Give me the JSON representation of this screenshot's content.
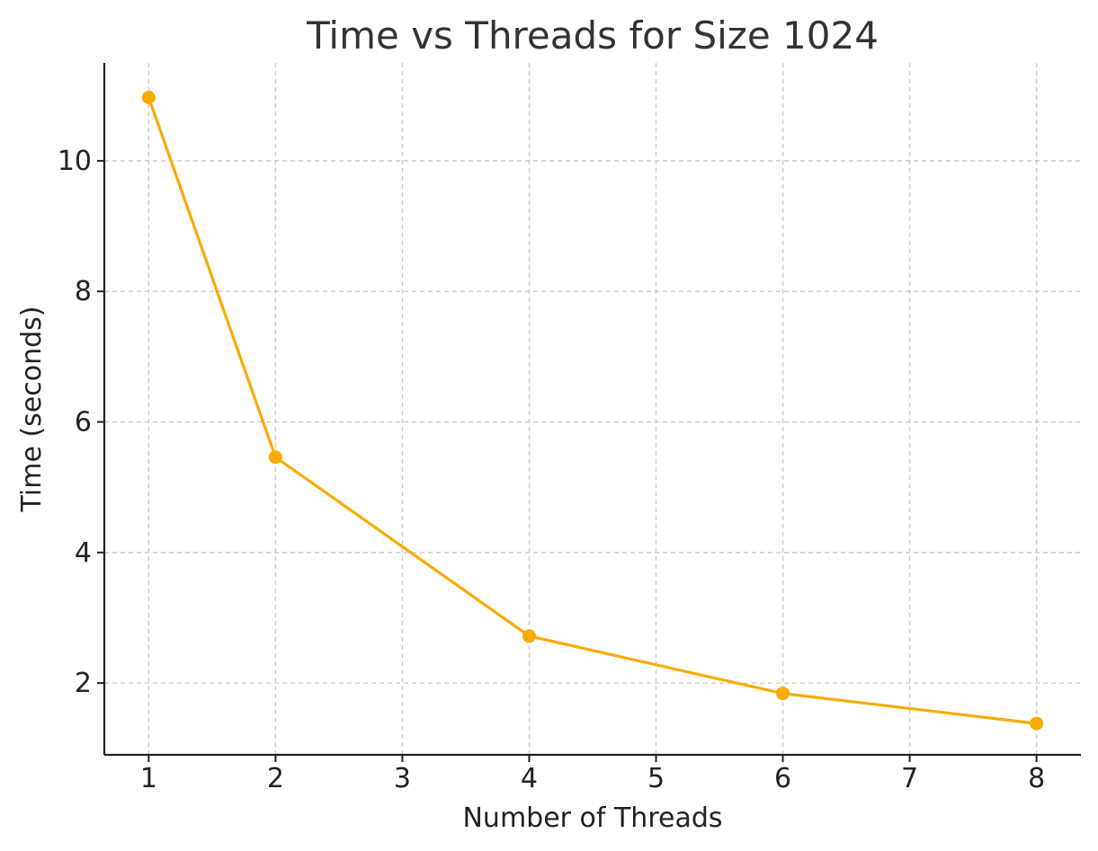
{
  "chart_data": {
    "type": "line",
    "title": "Time vs Threads for Size 1024",
    "xlabel": "Number of Threads",
    "ylabel": "Time (seconds)",
    "x_ticks": [
      1,
      2,
      3,
      4,
      5,
      6,
      7,
      8
    ],
    "y_ticks": [
      2,
      4,
      6,
      8,
      10
    ],
    "xlim": [
      0.65,
      8.35
    ],
    "ylim": [
      0.9,
      11.5
    ],
    "grid": true,
    "series": [
      {
        "color": "#f9ab00",
        "marker": "circle",
        "x": [
          1,
          2,
          4,
          6,
          8
        ],
        "y": [
          10.97,
          5.46,
          2.72,
          1.84,
          1.38
        ]
      }
    ]
  }
}
